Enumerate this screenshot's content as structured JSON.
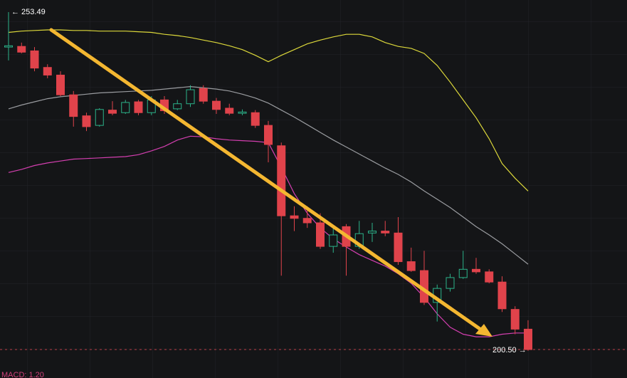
{
  "chart_data": {
    "type": "candlestick",
    "ylim": [
      196.03,
      255.39
    ],
    "up_color": "#2bb38a",
    "down_color": "#e0434b",
    "open": [
      248.0,
      248.1,
      247.4,
      244.8,
      243.6,
      240.5,
      237.2,
      235.7,
      238.1,
      237.7,
      239.4,
      237.7,
      239.7,
      238.3,
      239.1,
      241.5,
      239.5,
      238.4,
      237.6,
      237.7,
      235.7,
      232.5,
      221.5,
      221.1,
      220.4,
      216.7,
      219.8,
      216.7,
      218.8,
      219.1,
      218.8,
      214.3,
      212.9,
      207.9,
      210.1,
      211.8,
      213.1,
      212.7,
      211.1,
      206.8,
      203.7
    ],
    "high": [
      253.49,
      248.7,
      248.0,
      245.3,
      244.2,
      241.1,
      237.7,
      238.4,
      239.5,
      239.7,
      239.7,
      240.3,
      240.3,
      239.7,
      242.0,
      242.0,
      240.0,
      239.1,
      238.2,
      238.1,
      236.4,
      233.0,
      223.0,
      223.0,
      221.9,
      219.6,
      220.2,
      220.7,
      220.4,
      220.7,
      221.3,
      216.5,
      216.0,
      210.7,
      212.4,
      216.0,
      214.9,
      213.1,
      212.0,
      207.3,
      205.1
    ],
    "low": [
      245.9,
      247.0,
      244.2,
      243.1,
      240.3,
      235.5,
      234.8,
      235.5,
      237.3,
      237.5,
      237.3,
      237.3,
      237.5,
      238.1,
      238.6,
      239.1,
      237.5,
      237.3,
      237.3,
      235.3,
      229.9,
      212.1,
      219.1,
      219.6,
      216.3,
      215.7,
      212.1,
      216.3,
      217.4,
      218.3,
      213.8,
      212.7,
      207.5,
      204.9,
      209.6,
      211.6,
      212.4,
      210.9,
      206.4,
      202.9,
      200.3
    ],
    "close": [
      248.2,
      247.2,
      244.7,
      243.6,
      240.5,
      237.1,
      235.5,
      238.2,
      237.6,
      239.3,
      237.7,
      239.7,
      238.0,
      239.1,
      241.3,
      239.5,
      238.2,
      237.6,
      237.8,
      235.7,
      232.7,
      221.5,
      221.1,
      220.4,
      216.7,
      218.5,
      216.7,
      218.7,
      219.1,
      218.8,
      214.3,
      212.9,
      207.9,
      210.1,
      211.8,
      213.1,
      212.7,
      211.1,
      206.9,
      203.7,
      200.5
    ],
    "overlays": [
      {
        "color": "#dcd83a",
        "values": [
          250.3,
          250.5,
          250.6,
          250.7,
          250.7,
          250.6,
          250.6,
          250.5,
          250.5,
          250.5,
          250.4,
          250.3,
          250.0,
          249.8,
          249.5,
          249.1,
          248.7,
          248.2,
          247.6,
          246.7,
          245.7,
          246.7,
          247.6,
          248.5,
          249.1,
          249.6,
          250.0,
          250.0,
          249.6,
          248.7,
          248.1,
          247.8,
          247.0,
          245.1,
          242.5,
          239.7,
          236.9,
          233.6,
          229.7,
          227.4,
          225.4
        ]
      },
      {
        "color": "#9a9ca0",
        "values": [
          238.3,
          238.9,
          239.4,
          239.9,
          240.2,
          240.4,
          240.6,
          240.8,
          240.9,
          241.0,
          241.1,
          241.2,
          241.4,
          241.6,
          241.8,
          241.6,
          241.4,
          241.1,
          240.6,
          240.0,
          239.2,
          238.1,
          237.0,
          235.8,
          234.6,
          233.4,
          232.3,
          231.2,
          230.1,
          229.0,
          228.0,
          226.8,
          225.4,
          224.1,
          222.8,
          221.3,
          219.8,
          218.5,
          217.1,
          215.5,
          213.9
        ]
      },
      {
        "color": "#d43fb0",
        "values": [
          228.3,
          228.8,
          229.4,
          229.8,
          230.1,
          230.4,
          230.5,
          230.6,
          230.7,
          230.8,
          231.1,
          231.7,
          232.4,
          233.4,
          234.0,
          233.9,
          233.6,
          233.4,
          233.3,
          233.2,
          233.0,
          229.1,
          225.0,
          221.9,
          219.6,
          217.9,
          216.6,
          215.4,
          214.5,
          213.6,
          212.4,
          210.9,
          208.7,
          206.1,
          204.0,
          202.9,
          202.5,
          202.5,
          202.9,
          203.1,
          203.1
        ]
      }
    ],
    "price_labels": [
      {
        "value": 253.49,
        "label": "← 253.49"
      },
      {
        "value": 200.5,
        "label": "200.50 →"
      }
    ],
    "indicator_label": "MACD: 1.20"
  }
}
